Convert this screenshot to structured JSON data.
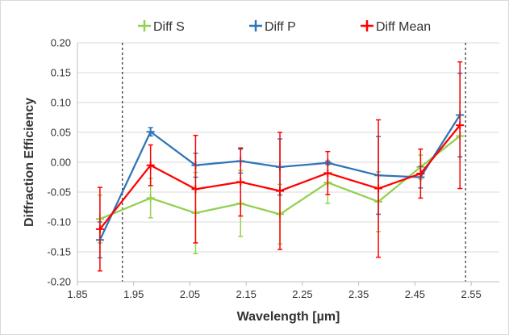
{
  "chart_data": {
    "type": "line",
    "title": "",
    "xlabel": "Wavelength [µm]",
    "ylabel": "Diffraction Efficiency",
    "xlim": [
      1.85,
      2.6
    ],
    "ylim": [
      -0.2,
      0.2
    ],
    "x_ticks": [
      "1.85",
      "1.95",
      "2.05",
      "2.15",
      "2.25",
      "2.35",
      "2.45",
      "2.55"
    ],
    "y_ticks": [
      "0.20",
      "0.15",
      "0.10",
      "0.05",
      "0.00",
      "-0.05",
      "-0.10",
      "-0.15",
      "-0.20"
    ],
    "grid": "horizontal",
    "legend_position": "top",
    "vertical_reference_lines": [
      1.93,
      2.54
    ],
    "x": [
      1.89,
      1.98,
      2.06,
      2.14,
      2.21,
      2.295,
      2.385,
      2.46,
      2.53
    ],
    "series": [
      {
        "name": "Diff S",
        "color": "#92d050",
        "values": [
          -0.095,
          -0.06,
          -0.085,
          -0.069,
          -0.087,
          -0.034,
          -0.066,
          -0.008,
          0.044
        ],
        "errors": [
          0.04,
          0.033,
          0.068,
          0.055,
          0.05,
          0.035,
          0.05,
          0.02,
          0.035
        ]
      },
      {
        "name": "Diff P",
        "color": "#2e75b6",
        "values": [
          -0.13,
          0.051,
          -0.005,
          0.002,
          -0.008,
          -0.001,
          -0.022,
          -0.025,
          0.079
        ],
        "errors": [
          0.03,
          0.007,
          0.02,
          0.02,
          0.047,
          0.003,
          0.065,
          0.018,
          0.07
        ]
      },
      {
        "name": "Diff Mean",
        "color": "#ff0000",
        "values": [
          -0.112,
          -0.005,
          -0.045,
          -0.033,
          -0.048,
          -0.018,
          -0.044,
          -0.019,
          0.062
        ],
        "errors": [
          0.07,
          0.034,
          0.09,
          0.057,
          0.098,
          0.036,
          0.115,
          0.041,
          0.106
        ]
      }
    ]
  }
}
